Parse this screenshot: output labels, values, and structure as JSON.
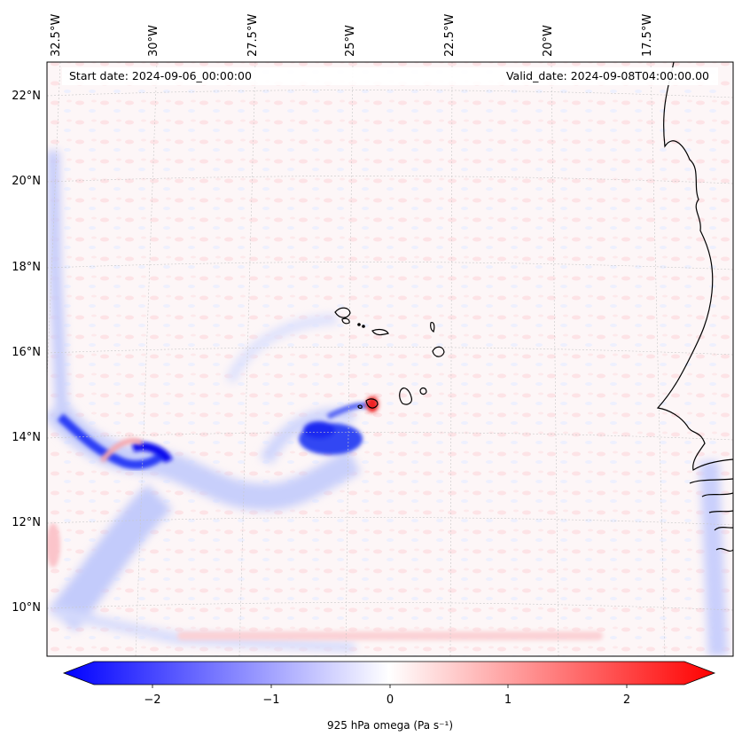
{
  "map": {
    "variable": "925 hPa omega",
    "colorbar_label": "925 hPa omega (Pa s⁻¹)",
    "colorbar_ticks": [
      "−2",
      "−1",
      "0",
      "1",
      "2"
    ],
    "colorbar_range": [
      -2.6,
      2.6
    ],
    "colormap": [
      "#0000ff",
      "#ffffff",
      "#ff0000"
    ],
    "start_date_label": "Start date: 2024-09-06_00:00:00",
    "valid_date_label": "Valid_date: 2024-09-08T04:00:00.00",
    "lon_labels": [
      "32.5°W",
      "30°W",
      "27.5°W",
      "25°W",
      "22.5°W",
      "20°W",
      "17.5°W"
    ],
    "lat_labels": [
      "22°N",
      "20°N",
      "18°N",
      "16°N",
      "14°N",
      "12°N",
      "10°N"
    ],
    "features": [
      "Cape Verde islands",
      "West African coastline"
    ]
  }
}
